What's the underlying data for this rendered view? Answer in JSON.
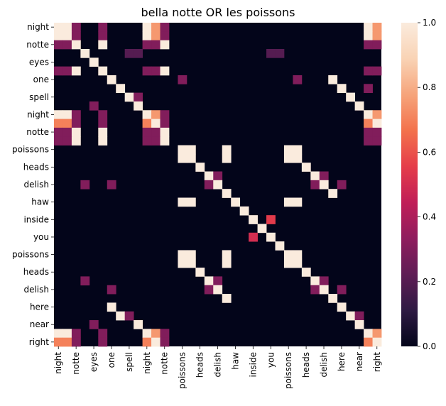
{
  "chart_data": {
    "type": "heatmap",
    "title": "bella notte OR les poissons",
    "ylabels": [
      "night",
      "notte",
      "eyes",
      "one",
      "spell",
      "night",
      "notte",
      "poissons",
      "heads",
      "delish",
      "haw",
      "inside",
      "you",
      "poissons",
      "heads",
      "delish",
      "here",
      "near",
      "right"
    ],
    "xlabels": [
      "night",
      "notte",
      "eyes",
      "one",
      "spell",
      "night",
      "notte",
      "poissons",
      "heads",
      "delish",
      "haw",
      "inside",
      "you",
      "poissons",
      "heads",
      "delish",
      "here",
      "near",
      "right"
    ],
    "row_labels_full": [
      "night",
      "",
      "notte",
      "",
      "eyes",
      "",
      "one",
      "",
      "spell",
      "",
      "night",
      "",
      "notte",
      "",
      "poissons",
      "",
      "heads",
      "",
      "delish",
      "",
      "haw",
      "",
      "inside",
      "",
      "you",
      "",
      "poissons",
      "",
      "heads",
      "",
      "delish",
      "",
      "here",
      "",
      "near",
      "",
      "right"
    ],
    "col_labels_full": [
      "night",
      "",
      "notte",
      "",
      "eyes",
      "",
      "one",
      "",
      "spell",
      "",
      "night",
      "",
      "notte",
      "",
      "poissons",
      "",
      "heads",
      "",
      "delish",
      "",
      "haw",
      "",
      "inside",
      "",
      "you",
      "",
      "poissons",
      "",
      "heads",
      "",
      "delish",
      "",
      "here",
      "",
      "near",
      "",
      "right"
    ],
    "nrows": 37,
    "ncols": 37,
    "cells": [
      [
        0,
        0,
        1.0
      ],
      [
        0,
        1,
        1.0
      ],
      [
        0,
        2,
        0.3
      ],
      [
        0,
        5,
        0.3
      ],
      [
        0,
        10,
        1.0
      ],
      [
        0,
        11,
        0.75
      ],
      [
        0,
        12,
        0.3
      ],
      [
        0,
        35,
        1.0
      ],
      [
        0,
        36,
        0.75
      ],
      [
        1,
        0,
        1.0
      ],
      [
        1,
        1,
        1.0
      ],
      [
        1,
        2,
        0.3
      ],
      [
        1,
        5,
        0.3
      ],
      [
        1,
        10,
        1.0
      ],
      [
        1,
        11,
        0.75
      ],
      [
        1,
        12,
        0.3
      ],
      [
        1,
        35,
        1.0
      ],
      [
        1,
        36,
        0.75
      ],
      [
        2,
        0,
        0.3
      ],
      [
        2,
        1,
        0.3
      ],
      [
        2,
        2,
        1.0
      ],
      [
        2,
        5,
        1.0
      ],
      [
        2,
        10,
        0.3
      ],
      [
        2,
        11,
        0.3
      ],
      [
        2,
        12,
        1.0
      ],
      [
        2,
        35,
        0.3
      ],
      [
        2,
        36,
        0.3
      ],
      [
        3,
        3,
        1.0
      ],
      [
        3,
        8,
        0.2
      ],
      [
        3,
        9,
        0.2
      ],
      [
        3,
        24,
        0.2
      ],
      [
        3,
        25,
        0.2
      ],
      [
        4,
        4,
        1.0
      ],
      [
        5,
        0,
        0.3
      ],
      [
        5,
        1,
        0.3
      ],
      [
        5,
        2,
        1.0
      ],
      [
        5,
        5,
        1.0
      ],
      [
        5,
        10,
        0.3
      ],
      [
        5,
        11,
        0.3
      ],
      [
        5,
        12,
        1.0
      ],
      [
        5,
        35,
        0.3
      ],
      [
        5,
        36,
        0.3
      ],
      [
        6,
        6,
        1.0
      ],
      [
        6,
        14,
        0.3
      ],
      [
        6,
        27,
        0.3
      ],
      [
        6,
        31,
        1.0
      ],
      [
        7,
        7,
        1.0
      ],
      [
        7,
        32,
        1.0
      ],
      [
        7,
        35,
        0.3
      ],
      [
        8,
        8,
        1.0
      ],
      [
        8,
        33,
        1.0
      ],
      [
        8,
        9,
        0.3
      ],
      [
        9,
        4,
        0.3
      ],
      [
        9,
        9,
        1.0
      ],
      [
        9,
        34,
        1.0
      ],
      [
        10,
        0,
        1.0
      ],
      [
        10,
        1,
        1.0
      ],
      [
        10,
        2,
        0.3
      ],
      [
        10,
        5,
        0.3
      ],
      [
        10,
        10,
        1.0
      ],
      [
        10,
        11,
        0.75
      ],
      [
        10,
        12,
        0.3
      ],
      [
        10,
        35,
        1.0
      ],
      [
        10,
        36,
        0.75
      ],
      [
        11,
        0,
        0.7
      ],
      [
        11,
        1,
        0.7
      ],
      [
        11,
        2,
        0.3
      ],
      [
        11,
        5,
        0.3
      ],
      [
        11,
        10,
        0.7
      ],
      [
        11,
        11,
        1.0
      ],
      [
        11,
        12,
        0.3
      ],
      [
        11,
        35,
        0.7
      ],
      [
        11,
        36,
        1.0
      ],
      [
        12,
        0,
        0.3
      ],
      [
        12,
        1,
        0.3
      ],
      [
        12,
        2,
        1.0
      ],
      [
        12,
        5,
        1.0
      ],
      [
        12,
        10,
        0.3
      ],
      [
        12,
        11,
        0.3
      ],
      [
        12,
        12,
        1.0
      ],
      [
        12,
        35,
        0.3
      ],
      [
        12,
        36,
        0.3
      ],
      [
        13,
        0,
        0.3
      ],
      [
        13,
        1,
        0.3
      ],
      [
        13,
        2,
        1.0
      ],
      [
        13,
        5,
        1.0
      ],
      [
        13,
        10,
        0.3
      ],
      [
        13,
        11,
        0.3
      ],
      [
        13,
        12,
        1.0
      ],
      [
        13,
        35,
        0.3
      ],
      [
        13,
        36,
        0.3
      ],
      [
        14,
        14,
        1.0
      ],
      [
        14,
        15,
        1.0
      ],
      [
        14,
        19,
        1.0
      ],
      [
        14,
        26,
        1.0
      ],
      [
        14,
        27,
        1.0
      ],
      [
        15,
        14,
        1.0
      ],
      [
        15,
        15,
        1.0
      ],
      [
        15,
        19,
        1.0
      ],
      [
        15,
        26,
        1.0
      ],
      [
        15,
        27,
        1.0
      ],
      [
        16,
        16,
        1.0
      ],
      [
        16,
        28,
        1.0
      ],
      [
        17,
        17,
        1.0
      ],
      [
        17,
        18,
        0.3
      ],
      [
        17,
        29,
        1.0
      ],
      [
        17,
        30,
        0.3
      ],
      [
        18,
        3,
        0.3
      ],
      [
        18,
        6,
        0.3
      ],
      [
        18,
        17,
        0.3
      ],
      [
        18,
        18,
        1.0
      ],
      [
        18,
        29,
        0.3
      ],
      [
        18,
        30,
        1.0
      ],
      [
        18,
        32,
        0.3
      ],
      [
        19,
        19,
        1.0
      ],
      [
        19,
        31,
        1.0
      ],
      [
        20,
        14,
        1.0
      ],
      [
        20,
        15,
        1.0
      ],
      [
        20,
        20,
        1.0
      ],
      [
        20,
        26,
        1.0
      ],
      [
        20,
        27,
        1.0
      ],
      [
        21,
        21,
        1.0
      ],
      [
        22,
        22,
        1.0
      ],
      [
        22,
        24,
        0.55
      ],
      [
        23,
        23,
        1.0
      ],
      [
        24,
        22,
        0.5
      ],
      [
        24,
        24,
        1.0
      ],
      [
        25,
        25,
        1.0
      ],
      [
        26,
        14,
        1.0
      ],
      [
        26,
        15,
        1.0
      ],
      [
        26,
        19,
        1.0
      ],
      [
        26,
        26,
        1.0
      ],
      [
        26,
        27,
        1.0
      ],
      [
        27,
        14,
        1.0
      ],
      [
        27,
        15,
        1.0
      ],
      [
        27,
        19,
        1.0
      ],
      [
        27,
        26,
        1.0
      ],
      [
        27,
        27,
        1.0
      ],
      [
        28,
        16,
        1.0
      ],
      [
        28,
        28,
        1.0
      ],
      [
        29,
        3,
        0.3
      ],
      [
        29,
        17,
        1.0
      ],
      [
        29,
        18,
        0.3
      ],
      [
        29,
        29,
        1.0
      ],
      [
        29,
        30,
        0.3
      ],
      [
        30,
        6,
        0.3
      ],
      [
        30,
        17,
        0.3
      ],
      [
        30,
        18,
        1.0
      ],
      [
        30,
        29,
        0.3
      ],
      [
        30,
        30,
        1.0
      ],
      [
        30,
        32,
        0.3
      ],
      [
        31,
        19,
        1.0
      ],
      [
        31,
        31,
        1.0
      ],
      [
        32,
        6,
        1.0
      ],
      [
        32,
        32,
        1.0
      ],
      [
        33,
        7,
        1.0
      ],
      [
        33,
        8,
        0.3
      ],
      [
        33,
        33,
        1.0
      ],
      [
        33,
        34,
        0.3
      ],
      [
        34,
        4,
        0.3
      ],
      [
        34,
        9,
        1.0
      ],
      [
        34,
        34,
        1.0
      ],
      [
        35,
        0,
        1.0
      ],
      [
        35,
        1,
        1.0
      ],
      [
        35,
        2,
        0.3
      ],
      [
        35,
        5,
        0.3
      ],
      [
        35,
        10,
        1.0
      ],
      [
        35,
        11,
        0.75
      ],
      [
        35,
        12,
        0.3
      ],
      [
        35,
        35,
        1.0
      ],
      [
        35,
        36,
        0.75
      ],
      [
        36,
        0,
        0.7
      ],
      [
        36,
        1,
        0.7
      ],
      [
        36,
        2,
        0.3
      ],
      [
        36,
        5,
        0.3
      ],
      [
        36,
        10,
        0.7
      ],
      [
        36,
        11,
        1.0
      ],
      [
        36,
        12,
        0.3
      ],
      [
        36,
        35,
        0.7
      ],
      [
        36,
        36,
        1.0
      ]
    ],
    "colorbar": {
      "min": 0.0,
      "max": 1.0,
      "ticks": [
        "0.0",
        "0.2",
        "0.4",
        "0.6",
        "0.8",
        "1.0"
      ]
    },
    "colormap": [
      "#03051a",
      "#2e1a43",
      "#5f1d55",
      "#8f1d5e",
      "#c01e58",
      "#e53d4a",
      "#f3724c",
      "#f6a47b",
      "#f9d3b5",
      "#faebdd"
    ]
  }
}
